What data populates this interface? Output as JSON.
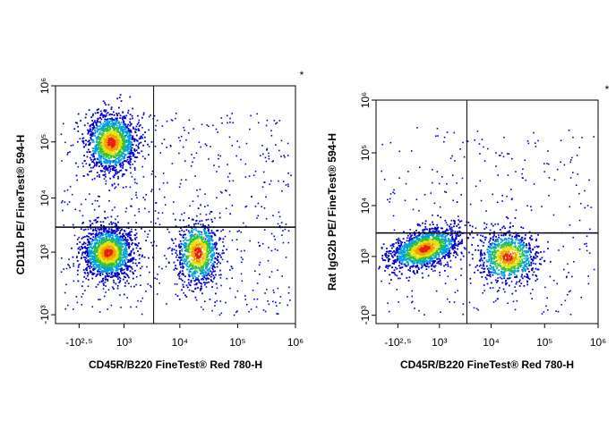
{
  "chart_data": [
    {
      "type": "density",
      "x_label": "CD45R/B220  FineTest® Red 780-H",
      "y_label": "CD11b PE/ FineTest® 594-H",
      "annotation": "*",
      "xlim": [
        -1200,
        1000000
      ],
      "ylim": [
        -1500,
        1000000
      ],
      "xticks": [
        {
          "value": -316,
          "label": "-10²·⁵"
        },
        {
          "value": 1000,
          "label": "10³"
        },
        {
          "value": 10000,
          "label": "10⁴"
        },
        {
          "value": 100000,
          "label": "10⁵"
        },
        {
          "value": 1000000,
          "label": "10⁶"
        }
      ],
      "yticks": [
        {
          "value": -1000,
          "label": "-10³"
        },
        {
          "value": 1000,
          "label": "10³"
        },
        {
          "value": 10000,
          "label": "10⁴"
        },
        {
          "value": 100000,
          "label": "10⁵"
        },
        {
          "value": 1000000,
          "label": "10⁶"
        }
      ],
      "gate_x": 3500,
      "gate_y": 3000,
      "populations": [
        {
          "x": 500,
          "y": 100000
        },
        {
          "x": 400,
          "y": 1000
        },
        {
          "x": 20000,
          "y": 1000
        }
      ]
    },
    {
      "type": "density",
      "x_label": "CD45R/B220  FineTest® Red 780-H",
      "y_label": "Rat IgG2b PE/ FineTest® 594-H",
      "annotation": "*",
      "xlim": [
        -1200,
        1000000
      ],
      "ylim": [
        -1500,
        1000000
      ],
      "xticks": [
        {
          "value": -316,
          "label": "-10²·⁵"
        },
        {
          "value": 1000,
          "label": "10³"
        },
        {
          "value": 10000,
          "label": "10⁴"
        },
        {
          "value": 100000,
          "label": "10⁵"
        },
        {
          "value": 1000000,
          "label": "10⁶"
        }
      ],
      "yticks": [
        {
          "value": -1000,
          "label": "-10³"
        },
        {
          "value": 1000,
          "label": "10³"
        },
        {
          "value": 10000,
          "label": "10⁴"
        },
        {
          "value": 100000,
          "label": "10⁵"
        },
        {
          "value": 1000000,
          "label": "10⁶"
        }
      ],
      "gate_x": 3500,
      "gate_y": 3000,
      "populations": [
        {
          "x": 400,
          "y": 1500
        },
        {
          "x": 20000,
          "y": 1000
        }
      ]
    }
  ]
}
